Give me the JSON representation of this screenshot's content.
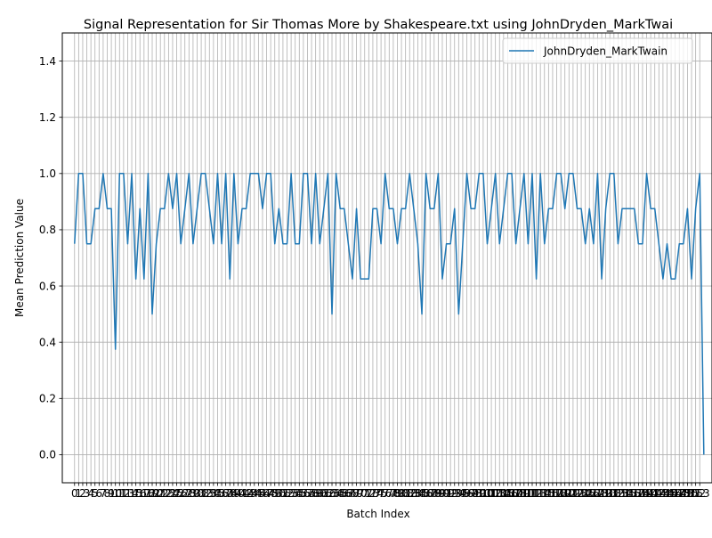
{
  "colors": {
    "series": "#1f77b4",
    "grid": "#b0b0b0",
    "axes": "#000000",
    "background": "#ffffff"
  },
  "chart_data": {
    "type": "line",
    "title": "Signal Representation for Sir Thomas More by Shakespeare.txt using JohnDryden_MarkTwai",
    "xlabel": "Batch Index",
    "ylabel": "Mean Prediction Value",
    "xlim": [
      -3,
      156
    ],
    "ylim": [
      -0.1,
      1.5
    ],
    "yticks": [
      0.0,
      0.2,
      0.4,
      0.6,
      0.8,
      1.0,
      1.2,
      1.4
    ],
    "ytick_labels": [
      "0.0",
      "0.2",
      "0.4",
      "0.6",
      "0.8",
      "1.0",
      "1.2",
      "1.4"
    ],
    "x_tick_count": 154,
    "x_tick_labels_note": "0 … 153 (every integer, overlapping as in the original)",
    "grid": true,
    "legend": {
      "position": "top-right",
      "entries": [
        "JohnDryden_MarkTwain"
      ]
    },
    "series": [
      {
        "name": "JohnDryden_MarkTwain",
        "x_start": 0,
        "values": [
          0.75,
          1.0,
          1.0,
          0.75,
          0.75,
          0.875,
          0.875,
          1.0,
          0.875,
          0.875,
          0.375,
          1.0,
          1.0,
          0.75,
          1.0,
          0.625,
          0.875,
          0.625,
          1.0,
          0.5,
          0.75,
          0.875,
          0.875,
          1.0,
          0.875,
          1.0,
          0.75,
          0.875,
          1.0,
          0.75,
          0.875,
          1.0,
          1.0,
          0.875,
          0.75,
          1.0,
          0.75,
          1.0,
          0.625,
          1.0,
          0.75,
          0.875,
          0.875,
          1.0,
          1.0,
          1.0,
          0.875,
          1.0,
          1.0,
          0.75,
          0.875,
          0.75,
          0.75,
          1.0,
          0.75,
          0.75,
          1.0,
          1.0,
          0.75,
          1.0,
          0.75,
          0.875,
          1.0,
          0.5,
          1.0,
          0.875,
          0.875,
          0.75,
          0.625,
          0.875,
          0.625,
          0.625,
          0.625,
          0.875,
          0.875,
          0.75,
          1.0,
          0.875,
          0.875,
          0.75,
          0.875,
          0.875,
          1.0,
          0.875,
          0.75,
          0.5,
          1.0,
          0.875,
          0.875,
          1.0,
          0.625,
          0.75,
          0.75,
          0.875,
          0.5,
          0.75,
          1.0,
          0.875,
          0.875,
          1.0,
          1.0,
          0.75,
          0.875,
          1.0,
          0.75,
          0.875,
          1.0,
          1.0,
          0.75,
          0.875,
          1.0,
          0.75,
          1.0,
          0.625,
          1.0,
          0.75,
          0.875,
          0.875,
          1.0,
          1.0,
          0.875,
          1.0,
          1.0,
          0.875,
          0.875,
          0.75,
          0.875,
          0.75,
          1.0,
          0.625,
          0.875,
          1.0,
          1.0,
          0.75,
          0.875,
          0.875,
          0.875,
          0.875,
          0.75,
          0.75,
          1.0,
          0.875,
          0.875,
          0.75,
          0.625,
          0.75,
          0.625,
          0.625,
          0.75,
          0.75,
          0.875,
          0.625,
          0.875,
          1.0,
          0.0
        ]
      }
    ]
  }
}
